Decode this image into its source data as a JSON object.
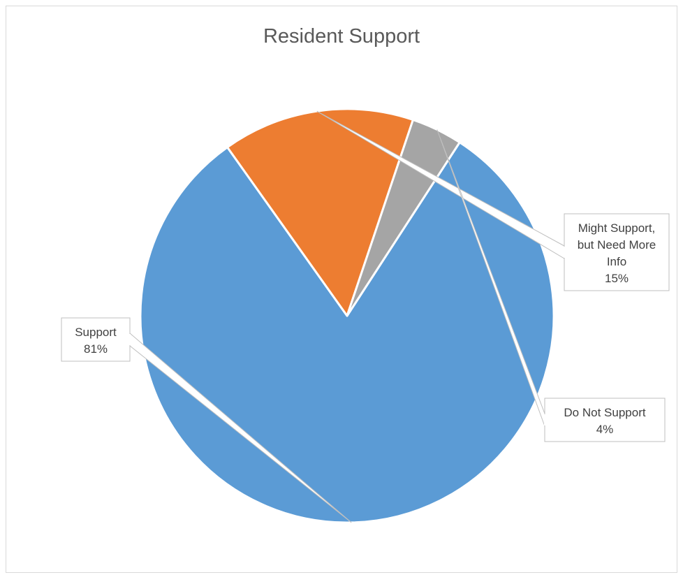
{
  "chart_data": {
    "type": "pie",
    "title": "Resident Support",
    "categories": [
      "Support",
      "Might Support, but Need More Info",
      "Do Not Support"
    ],
    "values": [
      81,
      15,
      4
    ],
    "slices": [
      {
        "label": "Support",
        "value": 81,
        "value_label": "81%",
        "color": "#5b9bd5",
        "label_lines": [
          "Support",
          "81%"
        ]
      },
      {
        "label": "Might Support, but Need More Info",
        "value": 15,
        "value_label": "15%",
        "color": "#ed7d31",
        "label_lines": [
          "Might Support,",
          "but Need More",
          "Info",
          "15%"
        ]
      },
      {
        "label": "Do Not Support",
        "value": 4,
        "value_label": "4%",
        "color": "#a5a5a5",
        "label_lines": [
          "Do Not Support",
          "4%"
        ]
      }
    ],
    "legend": "none",
    "label_style": "callout"
  }
}
